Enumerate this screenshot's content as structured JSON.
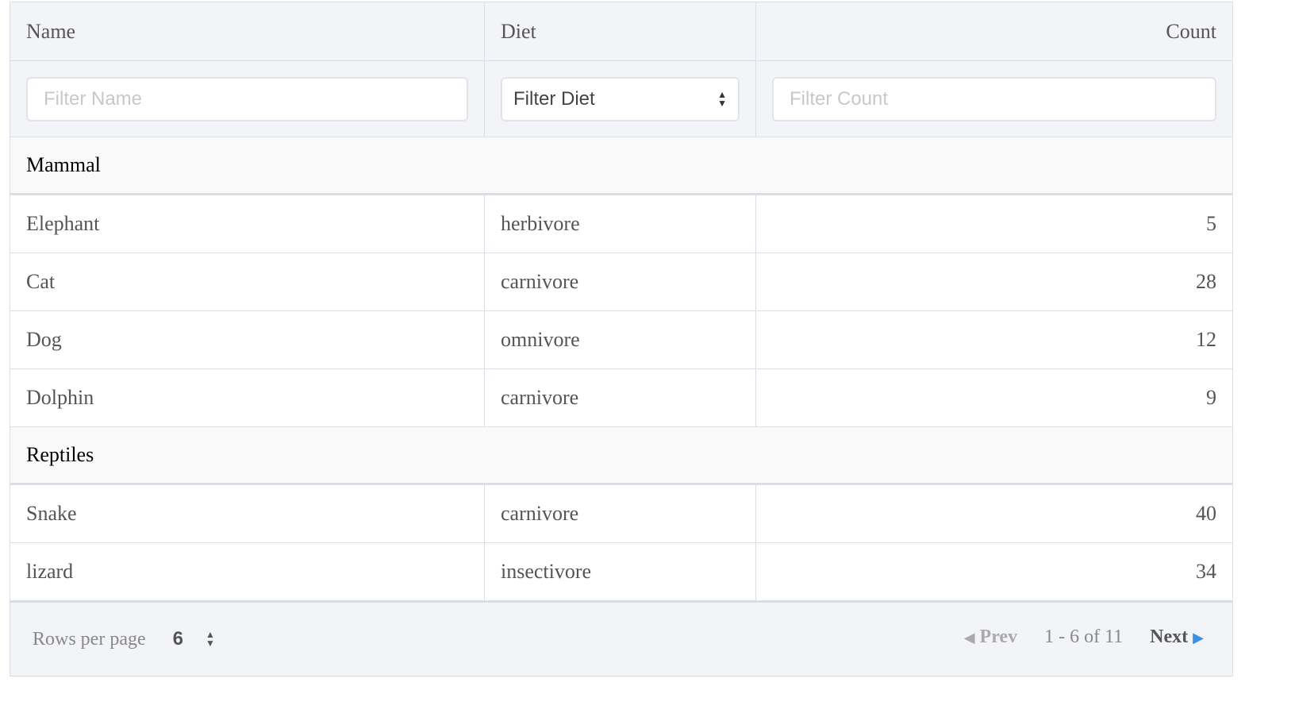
{
  "columns": [
    "Name",
    "Diet",
    "Count"
  ],
  "filters": {
    "name_placeholder": "Filter Name",
    "diet_value": "Filter Diet",
    "count_placeholder": "Filter Count"
  },
  "groups": [
    {
      "label": "Mammal",
      "rows": [
        {
          "name": "Elephant",
          "diet": "herbivore",
          "count": "5"
        },
        {
          "name": "Cat",
          "diet": "carnivore",
          "count": "28"
        },
        {
          "name": "Dog",
          "diet": "omnivore",
          "count": "12"
        },
        {
          "name": "Dolphin",
          "diet": "carnivore",
          "count": "9"
        }
      ]
    },
    {
      "label": "Reptiles",
      "rows": [
        {
          "name": "Snake",
          "diet": "carnivore",
          "count": "40"
        },
        {
          "name": "lizard",
          "diet": "insectivore",
          "count": "34"
        }
      ]
    }
  ],
  "footer": {
    "rows_per_page_label": "Rows per page",
    "rows_per_page": "6",
    "prev": "Prev",
    "range": "1 - 6 of 11",
    "next": "Next"
  },
  "colors": {
    "accent": "#3b8fe6",
    "header_bg": "#f3f4f7",
    "border": "#dcdee5"
  }
}
